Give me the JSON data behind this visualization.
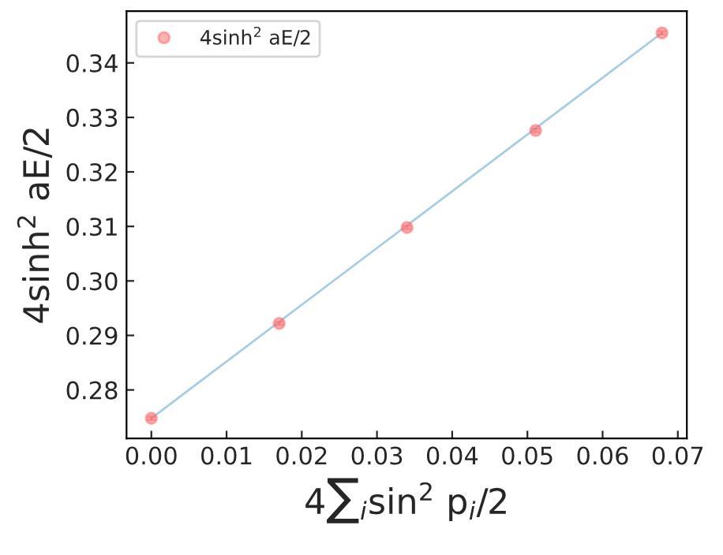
{
  "chart_data": {
    "type": "scatter",
    "xlabel": "4∑$_{i}$sin$^{2}$ p$_{i}$/2",
    "ylabel": "4sinh$^{2}$ aE/2",
    "series": [
      {
        "name": "4sinh$^{2}$ aE/2",
        "marker": "circle",
        "color": "#ff6666",
        "x": [
          0.0,
          0.017,
          0.034,
          0.0511,
          0.0679
        ],
        "values": [
          0.2748,
          0.2922,
          0.3098,
          0.3276,
          0.3455
        ],
        "errors": [
          0.0003,
          0.0003,
          0.0003,
          0.0003,
          0.0003
        ]
      },
      {
        "type": "line",
        "color": "#a6cde6",
        "x": [
          0.0,
          0.0679
        ],
        "values": [
          0.2748,
          0.3455
        ]
      }
    ],
    "xlim": [
      -0.0033,
      0.0712
    ],
    "ylim": [
      0.2711,
      0.3495
    ],
    "xticks": [
      {
        "value": 0.0,
        "label": "0.00"
      },
      {
        "value": 0.01,
        "label": "0.01"
      },
      {
        "value": 0.02,
        "label": "0.02"
      },
      {
        "value": 0.03,
        "label": "0.03"
      },
      {
        "value": 0.04,
        "label": "0.04"
      },
      {
        "value": 0.05,
        "label": "0.05"
      },
      {
        "value": 0.06,
        "label": "0.06"
      },
      {
        "value": 0.07,
        "label": "0.07"
      }
    ],
    "yticks": [
      {
        "value": 0.28,
        "label": "0.28"
      },
      {
        "value": 0.29,
        "label": "0.29"
      },
      {
        "value": 0.3,
        "label": "0.30"
      },
      {
        "value": 0.31,
        "label": "0.31"
      },
      {
        "value": 0.32,
        "label": "0.32"
      },
      {
        "value": 0.33,
        "label": "0.33"
      },
      {
        "value": 0.34,
        "label": "0.34"
      }
    ],
    "legend": "top left",
    "grid": false
  }
}
